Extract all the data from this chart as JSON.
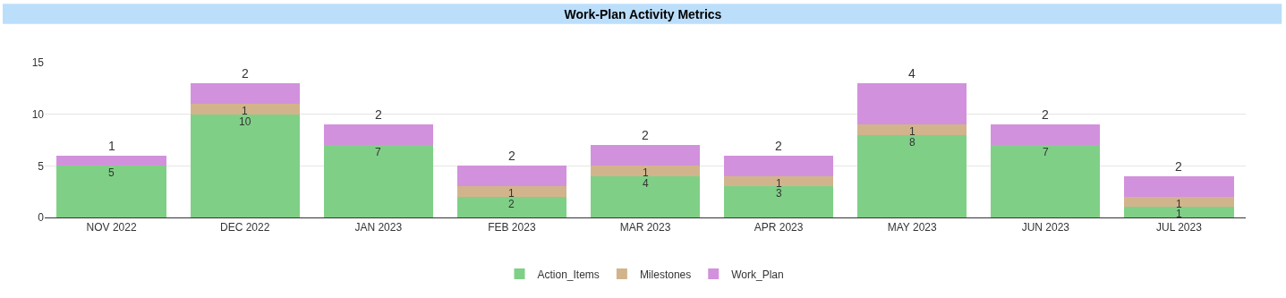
{
  "chart_data": {
    "type": "bar",
    "title": "Work-Plan Activity Metrics",
    "stacked": true,
    "categories": [
      "NOV 2022",
      "DEC 2022",
      "JAN 2023",
      "FEB 2023",
      "MAR 2023",
      "APR 2023",
      "MAY 2023",
      "JUN 2023",
      "JUL 2023"
    ],
    "series": [
      {
        "name": "Action_Items",
        "color": "#7fd086",
        "values": [
          5,
          10,
          7,
          2,
          4,
          3,
          8,
          7,
          1
        ]
      },
      {
        "name": "Milestones",
        "color": "#d2b48c",
        "values": [
          null,
          1,
          null,
          1,
          1,
          1,
          1,
          null,
          1
        ]
      },
      {
        "name": "Work_Plan",
        "color": "#d291dc",
        "values": [
          1,
          2,
          2,
          2,
          2,
          2,
          4,
          2,
          2
        ]
      }
    ],
    "ylim": [
      0,
      15
    ],
    "yticks": [
      0,
      5,
      10,
      15
    ],
    "grid": "y",
    "legend": "bottom",
    "data_labels": true
  }
}
